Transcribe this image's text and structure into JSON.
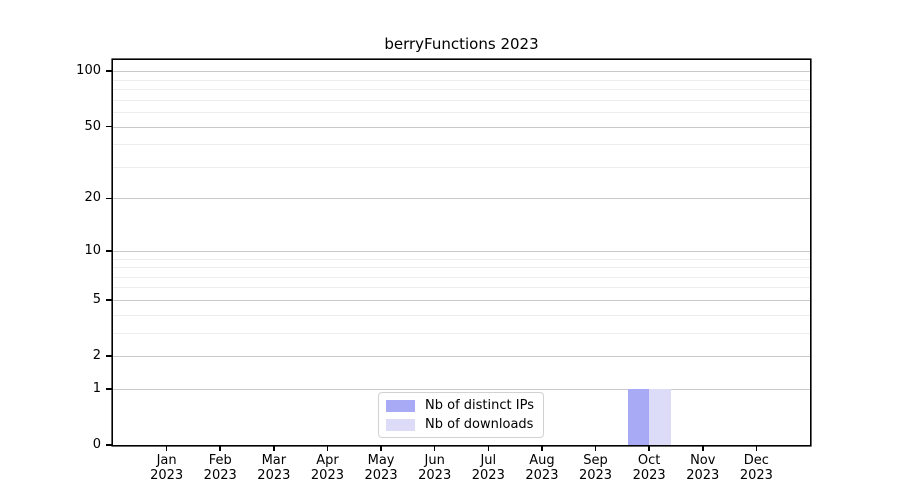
{
  "chart_data": {
    "type": "bar",
    "title": "berryFunctions 2023",
    "xlabel": "",
    "ylabel": "",
    "categories": [
      {
        "month": "Jan",
        "year": "2023"
      },
      {
        "month": "Feb",
        "year": "2023"
      },
      {
        "month": "Mar",
        "year": "2023"
      },
      {
        "month": "Apr",
        "year": "2023"
      },
      {
        "month": "May",
        "year": "2023"
      },
      {
        "month": "Jun",
        "year": "2023"
      },
      {
        "month": "Jul",
        "year": "2023"
      },
      {
        "month": "Aug",
        "year": "2023"
      },
      {
        "month": "Sep",
        "year": "2023"
      },
      {
        "month": "Oct",
        "year": "2023"
      },
      {
        "month": "Nov",
        "year": "2023"
      },
      {
        "month": "Dec",
        "year": "2023"
      }
    ],
    "series": [
      {
        "name": "Nb of distinct IPs",
        "color": "#a9aaf6",
        "values": [
          0,
          0,
          0,
          0,
          0,
          0,
          0,
          0,
          0,
          1,
          0,
          0
        ]
      },
      {
        "name": "Nb of downloads",
        "color": "#dcdcf9",
        "values": [
          0,
          0,
          0,
          0,
          0,
          0,
          0,
          0,
          0,
          1,
          0,
          0
        ]
      }
    ],
    "y_axis": {
      "scale": "log1p",
      "ticks": [
        0,
        1,
        2,
        5,
        10,
        20,
        50,
        100
      ],
      "minor_gridlines": [
        3,
        4,
        6,
        7,
        8,
        9,
        30,
        40,
        60,
        70,
        80,
        90
      ],
      "ymax": 115
    },
    "legend": {
      "position": "bottom-center"
    },
    "colors": {
      "axis": "#000000",
      "major_grid": "#c9c9c9",
      "minor_grid": "#ededed",
      "background": "#ffffff"
    },
    "grid": "on"
  }
}
